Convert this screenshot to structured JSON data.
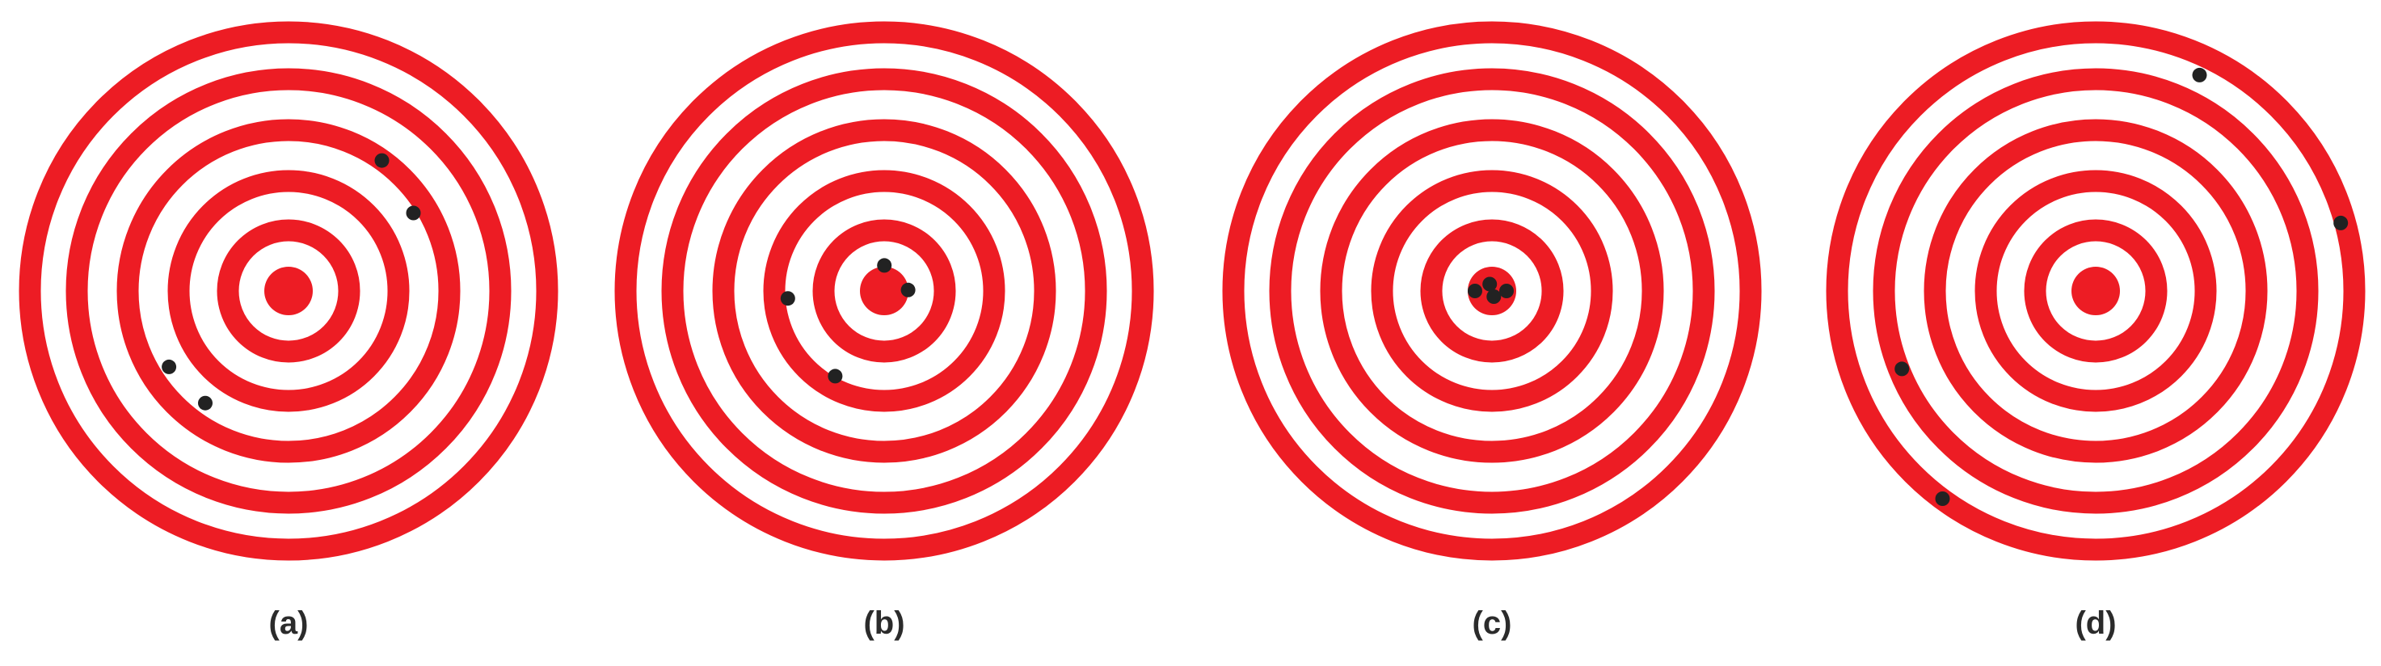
{
  "colors": {
    "ring": "#ed1c24",
    "background": "#ffffff",
    "hit": "#222222",
    "label": "#2b2b2b"
  },
  "targets": [
    {
      "label": "(a)",
      "hits": [
        {
          "r": 0.596,
          "angle_deg": 54.4
        },
        {
          "r": 0.547,
          "angle_deg": 32.0
        },
        {
          "r": 0.526,
          "angle_deg": -147.6
        },
        {
          "r": 0.519,
          "angle_deg": -126.6
        }
      ]
    },
    {
      "label": "(b)",
      "hits": [
        {
          "r": 0.095,
          "angle_deg": 89.6
        },
        {
          "r": 0.089,
          "angle_deg": 2.3
        },
        {
          "r": 0.359,
          "angle_deg": 184.4
        },
        {
          "r": 0.365,
          "angle_deg": 240.1
        }
      ]
    },
    {
      "label": "(c)",
      "hits": [
        {
          "r": 0.027,
          "angle_deg": 108.4
        },
        {
          "r": 0.054,
          "angle_deg": 0.0
        },
        {
          "r": 0.022,
          "angle_deg": -71.6
        },
        {
          "r": 0.063,
          "angle_deg": 180.0
        }
      ]
    },
    {
      "label": "(d)",
      "hits": [
        {
          "r": 0.89,
          "angle_deg": 64.3
        },
        {
          "r": 0.945,
          "angle_deg": 15.5
        },
        {
          "r": 0.776,
          "angle_deg": 201.9
        },
        {
          "r": 0.959,
          "angle_deg": 233.6
        }
      ]
    }
  ]
}
